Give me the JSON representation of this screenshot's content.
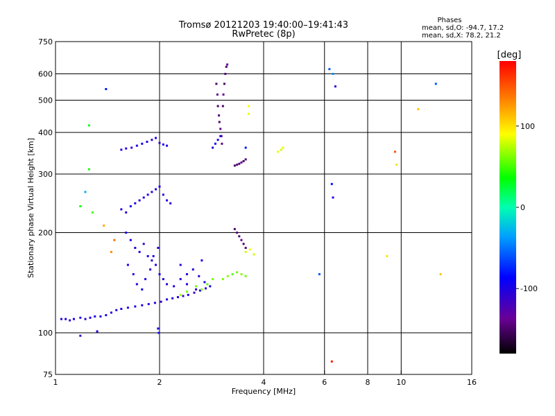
{
  "header": {
    "title_line1": "Tromsø 20121203 19:40:00–19:41:43",
    "title_line2": "RwPretec (8p)"
  },
  "stats": {
    "heading": "Phases",
    "line1": "mean, sd,O: -94.7, 17.2",
    "line2": "mean, sd,X:  78.2, 21.2"
  },
  "colorbar": {
    "label": "[deg]",
    "range": [
      -180,
      180
    ],
    "ticks": [
      {
        "value": 100,
        "label": "100"
      },
      {
        "value": 0,
        "label": "0"
      },
      {
        "value": -100,
        "label": "-100"
      }
    ]
  },
  "chart_data": {
    "type": "scatter",
    "title": "Tromsø 20121203 19:40:00–19:41:43",
    "subtitle": "RwPretec (8p)",
    "xlabel": "Frequency [MHz]",
    "ylabel": "Stationary phase Virtual Height [km]",
    "x_scale": "log",
    "y_scale": "log",
    "xlim": [
      1,
      16
    ],
    "ylim": [
      75,
      750
    ],
    "x_ticks": [
      {
        "value": 1,
        "label": "1"
      },
      {
        "value": 2,
        "label": "2"
      },
      {
        "value": 4,
        "label": "4"
      },
      {
        "value": 6,
        "label": "6"
      },
      {
        "value": 8,
        "label": "8"
      },
      {
        "value": 10,
        "label": "10"
      },
      {
        "value": 16,
        "label": "16"
      }
    ],
    "y_ticks": [
      {
        "value": 75,
        "label": "75"
      },
      {
        "value": 100,
        "label": "100"
      },
      {
        "value": 200,
        "label": "200"
      },
      {
        "value": 300,
        "label": "300"
      },
      {
        "value": 400,
        "label": "400"
      },
      {
        "value": 500,
        "label": "500"
      },
      {
        "value": 600,
        "label": "600"
      },
      {
        "value": 750,
        "label": "750"
      }
    ],
    "grid": true,
    "color_by": "phase (deg)",
    "points": [
      [
        1.04,
        110,
        -105
      ],
      [
        1.07,
        110,
        -100
      ],
      [
        1.1,
        109,
        -110
      ],
      [
        1.13,
        110,
        -95
      ],
      [
        1.18,
        111,
        -100
      ],
      [
        1.22,
        110,
        -105
      ],
      [
        1.26,
        111,
        -100
      ],
      [
        1.3,
        112,
        -98
      ],
      [
        1.35,
        112,
        -102
      ],
      [
        1.4,
        113,
        -100
      ],
      [
        1.45,
        115,
        -105
      ],
      [
        1.5,
        117,
        -100
      ],
      [
        1.55,
        118,
        -98
      ],
      [
        1.62,
        119,
        -100
      ],
      [
        1.7,
        120,
        -102
      ],
      [
        1.78,
        121,
        -100
      ],
      [
        1.86,
        122,
        -105
      ],
      [
        1.94,
        123,
        -100
      ],
      [
        2.02,
        124,
        -110
      ],
      [
        2.1,
        126,
        -100
      ],
      [
        2.18,
        127,
        -105
      ],
      [
        2.26,
        128,
        -100
      ],
      [
        2.34,
        129,
        -108
      ],
      [
        2.42,
        130,
        -100
      ],
      [
        2.52,
        132,
        -110
      ],
      [
        2.62,
        134,
        -100
      ],
      [
        2.72,
        136,
        -105
      ],
      [
        2.8,
        138,
        -100
      ],
      [
        1.18,
        98,
        -110
      ],
      [
        1.32,
        101,
        -100
      ],
      [
        1.98,
        103,
        -100
      ],
      [
        1.99,
        100,
        -95
      ],
      [
        1.55,
        355,
        -100
      ],
      [
        1.6,
        358,
        -105
      ],
      [
        1.66,
        360,
        -110
      ],
      [
        1.72,
        365,
        -100
      ],
      [
        1.78,
        370,
        -95
      ],
      [
        1.84,
        375,
        -100
      ],
      [
        1.9,
        380,
        -105
      ],
      [
        1.95,
        385,
        -100
      ],
      [
        2.0,
        372,
        -110
      ],
      [
        2.05,
        368,
        -100
      ],
      [
        2.1,
        365,
        -98
      ],
      [
        1.55,
        235,
        -100
      ],
      [
        1.6,
        230,
        -105
      ],
      [
        1.65,
        240,
        -100
      ],
      [
        1.7,
        245,
        -98
      ],
      [
        1.75,
        250,
        -105
      ],
      [
        1.8,
        255,
        -100
      ],
      [
        1.85,
        260,
        -102
      ],
      [
        1.9,
        265,
        -105
      ],
      [
        1.95,
        270,
        -100
      ],
      [
        2.0,
        275,
        -95
      ],
      [
        2.05,
        260,
        -110
      ],
      [
        2.1,
        250,
        -100
      ],
      [
        2.15,
        245,
        -105
      ],
      [
        1.6,
        200,
        -100
      ],
      [
        1.65,
        190,
        -98
      ],
      [
        1.7,
        180,
        -105
      ],
      [
        1.75,
        175,
        -100
      ],
      [
        1.8,
        185,
        -110
      ],
      [
        1.85,
        170,
        -100
      ],
      [
        1.9,
        165,
        -105
      ],
      [
        1.95,
        160,
        -100
      ],
      [
        2.0,
        150,
        -98
      ],
      [
        2.05,
        145,
        -100
      ],
      [
        2.1,
        140,
        -105
      ],
      [
        2.2,
        138,
        -100
      ],
      [
        2.3,
        145,
        -102
      ],
      [
        2.4,
        150,
        -105
      ],
      [
        2.5,
        155,
        -100
      ],
      [
        2.6,
        148,
        -110
      ],
      [
        2.7,
        142,
        -100
      ],
      [
        1.62,
        160,
        -100
      ],
      [
        1.68,
        150,
        -105
      ],
      [
        1.72,
        140,
        -100
      ],
      [
        1.78,
        135,
        -98
      ],
      [
        1.82,
        145,
        -100
      ],
      [
        1.88,
        155,
        -105
      ],
      [
        1.92,
        170,
        -100
      ],
      [
        1.98,
        180,
        -110
      ],
      [
        2.3,
        160,
        -100
      ],
      [
        2.4,
        140,
        -100
      ],
      [
        2.55,
        135,
        -105
      ],
      [
        2.65,
        165,
        -100
      ],
      [
        2.55,
        138,
        60
      ],
      [
        2.65,
        135,
        65
      ],
      [
        2.75,
        140,
        55
      ],
      [
        2.85,
        145,
        60
      ],
      [
        3.05,
        145,
        60
      ],
      [
        3.15,
        148,
        65
      ],
      [
        3.25,
        150,
        55
      ],
      [
        3.35,
        152,
        60
      ],
      [
        3.45,
        150,
        65
      ],
      [
        3.55,
        148,
        60
      ],
      [
        2.3,
        130,
        70
      ],
      [
        2.4,
        133,
        60
      ],
      [
        2.92,
        560,
        -150
      ],
      [
        2.94,
        520,
        -140
      ],
      [
        2.95,
        480,
        -150
      ],
      [
        2.97,
        450,
        -145
      ],
      [
        2.98,
        430,
        -150
      ],
      [
        3.0,
        410,
        -140
      ],
      [
        3.02,
        390,
        -150
      ],
      [
        3.03,
        370,
        -145
      ],
      [
        3.05,
        480,
        -150
      ],
      [
        3.06,
        520,
        -140
      ],
      [
        3.08,
        560,
        -150
      ],
      [
        3.1,
        600,
        -145
      ],
      [
        3.12,
        630,
        -150
      ],
      [
        3.14,
        640,
        -140
      ],
      [
        2.85,
        360,
        -100
      ],
      [
        2.9,
        370,
        -95
      ],
      [
        2.95,
        380,
        -100
      ],
      [
        3.0,
        390,
        -105
      ],
      [
        3.3,
        318,
        -150
      ],
      [
        3.35,
        320,
        -145
      ],
      [
        3.4,
        322,
        -150
      ],
      [
        3.45,
        325,
        -140
      ],
      [
        3.5,
        328,
        -150
      ],
      [
        3.55,
        332,
        -145
      ],
      [
        3.3,
        205,
        -150
      ],
      [
        3.35,
        200,
        -145
      ],
      [
        3.4,
        195,
        -150
      ],
      [
        3.45,
        190,
        -140
      ],
      [
        3.5,
        185,
        -150
      ],
      [
        3.55,
        180,
        -145
      ],
      [
        3.55,
        175,
        80
      ],
      [
        3.65,
        178,
        85
      ],
      [
        3.75,
        172,
        80
      ],
      [
        4.4,
        350,
        85
      ],
      [
        4.5,
        355,
        80
      ],
      [
        4.55,
        360,
        85
      ],
      [
        1.25,
        420,
        30
      ],
      [
        1.25,
        310,
        40
      ],
      [
        1.28,
        230,
        50
      ],
      [
        1.18,
        240,
        40
      ],
      [
        1.22,
        265,
        -30
      ],
      [
        1.4,
        540,
        -80
      ],
      [
        1.38,
        210,
        120
      ],
      [
        1.48,
        190,
        140
      ],
      [
        1.45,
        175,
        130
      ],
      [
        3.62,
        480,
        90
      ],
      [
        3.62,
        455,
        85
      ],
      [
        3.55,
        360,
        -80
      ],
      [
        6.2,
        620,
        -60
      ],
      [
        6.35,
        600,
        -40
      ],
      [
        6.45,
        550,
        -100
      ],
      [
        6.3,
        280,
        -80
      ],
      [
        6.35,
        255,
        -100
      ],
      [
        9.6,
        350,
        150
      ],
      [
        9.7,
        320,
        100
      ],
      [
        11.2,
        470,
        110
      ],
      [
        12.6,
        560,
        -60
      ],
      [
        13.0,
        150,
        110
      ],
      [
        9.1,
        170,
        100
      ],
      [
        5.8,
        150,
        -60
      ],
      [
        6.3,
        82,
        170
      ]
    ]
  }
}
